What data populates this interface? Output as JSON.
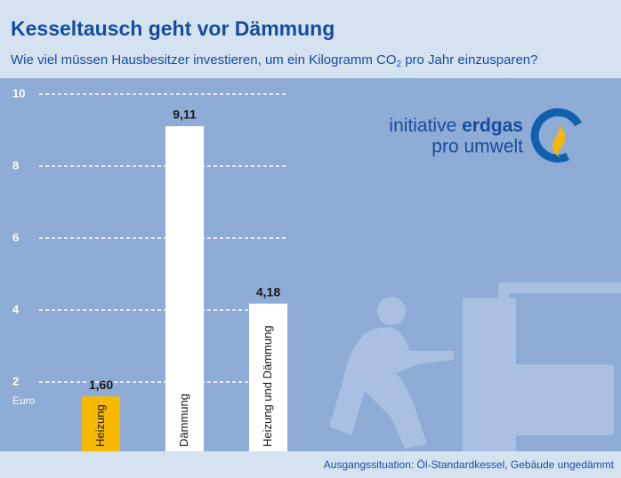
{
  "chart_data": {
    "type": "bar",
    "title": "Kesseltausch geht vor Dämmung",
    "subtitle_parts": [
      "Wie viel müssen Hausbesitzer investieren, um ein Kilogramm CO",
      "2",
      " pro Jahr einzusparen?"
    ],
    "y_label": "Euro",
    "categories": [
      "Heizung",
      "Dämmung",
      "Heizung und Dämmung"
    ],
    "values": [
      1.6,
      9.11,
      4.18
    ],
    "value_labels": [
      "1,60",
      "9,11",
      "4,18"
    ],
    "colors": [
      "#f6b800",
      "#ffffff",
      "#ffffff"
    ],
    "ylim": [
      0,
      10
    ],
    "yticks": [
      2,
      4,
      6,
      8,
      10
    ],
    "grid": true,
    "logo": {
      "word1": "initiative",
      "word2": "erdgas",
      "line2": "pro umwelt"
    },
    "note": "Ausgangssituation: Öl-Standardkessel, Gebäude ungedämmt"
  }
}
